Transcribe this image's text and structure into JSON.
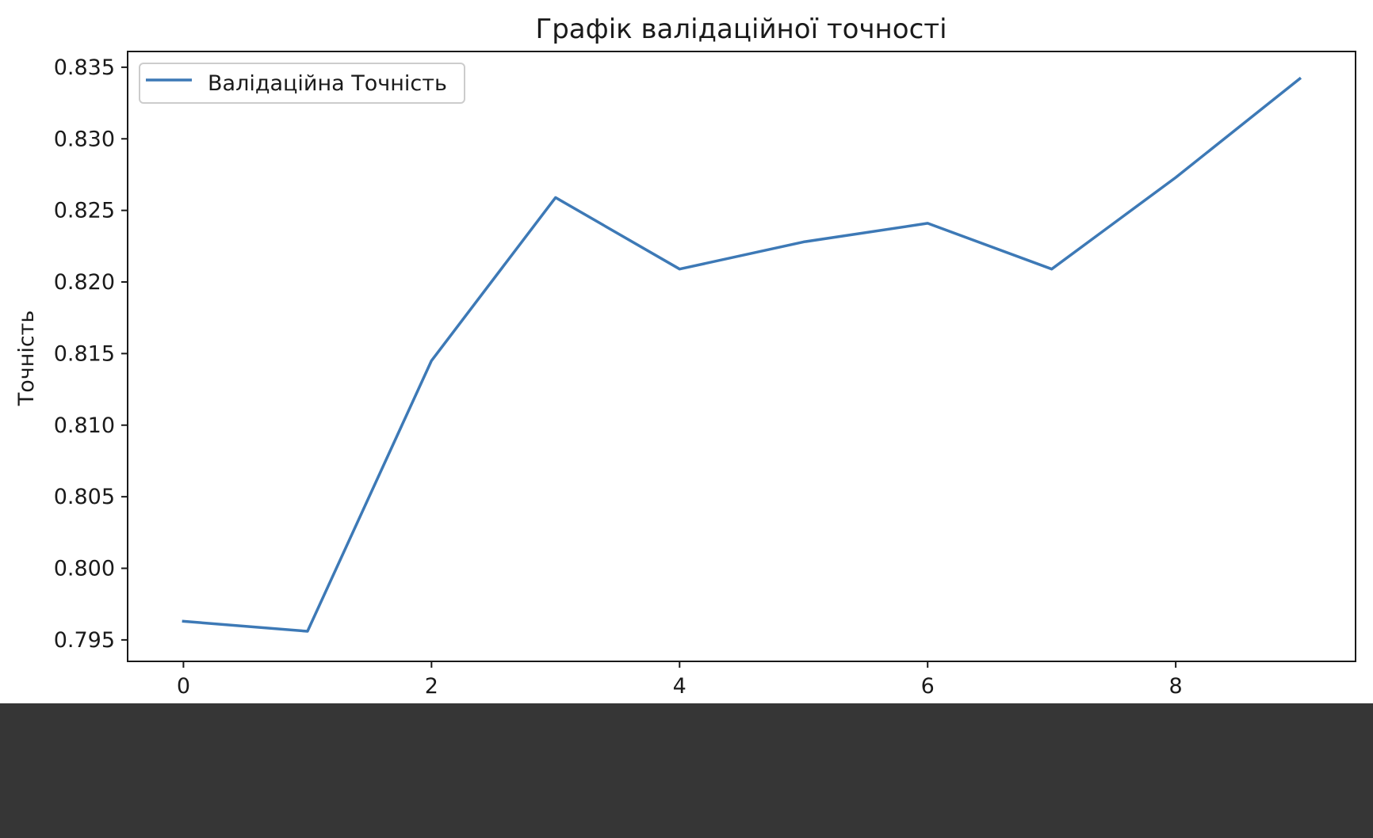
{
  "chart_data": {
    "type": "line",
    "title": "Графік валідаційної точності",
    "xlabel": "",
    "ylabel": "Точність",
    "x": [
      0,
      1,
      2,
      3,
      4,
      5,
      6,
      7,
      8,
      9
    ],
    "series": [
      {
        "name": "Валідаційна Точність",
        "color": "#3d79b6",
        "values": [
          0.7963,
          0.7956,
          0.8145,
          0.8259,
          0.8209,
          0.8228,
          0.8241,
          0.8209,
          0.8273,
          0.8342
        ]
      }
    ],
    "xlim": [
      -0.45,
      9.45
    ],
    "ylim": [
      0.7935,
      0.8361
    ],
    "xticks": [
      0,
      2,
      4,
      6,
      8
    ],
    "xtick_labels": [
      "0",
      "2",
      "4",
      "6",
      "8"
    ],
    "yticks": [
      0.795,
      0.8,
      0.805,
      0.81,
      0.815,
      0.82,
      0.825,
      0.83,
      0.835
    ],
    "ytick_labels": [
      "0.795",
      "0.800",
      "0.805",
      "0.810",
      "0.815",
      "0.820",
      "0.825",
      "0.830",
      "0.835"
    ],
    "grid": false,
    "legend": "upper left"
  },
  "colors": {
    "figure_background": "#ffffff",
    "outer_background": "#363636",
    "axes_edge": "#1a1a1a"
  }
}
